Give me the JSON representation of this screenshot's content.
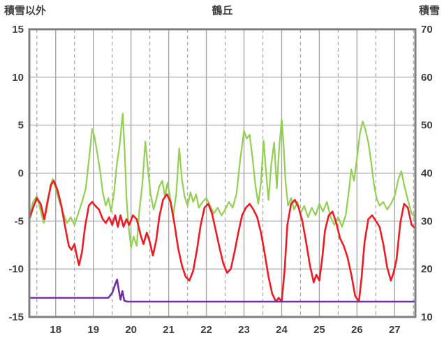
{
  "chart_data": {
    "type": "line",
    "title": "鶴丘",
    "grid": {
      "h_color": "#a6a6a6",
      "v_color": "#a6a6a6",
      "border_color": "#7f7f7f",
      "border_width": 3
    },
    "left_axis": {
      "label": "積雪以外",
      "min": -15,
      "max": 15,
      "ticks": [
        15,
        10,
        5,
        0,
        -5,
        -10,
        -15
      ]
    },
    "right_axis": {
      "label": "積雪",
      "min": 10,
      "max": 70,
      "ticks": [
        70,
        60,
        50,
        40,
        30,
        20,
        10
      ]
    },
    "x_axis": {
      "min": 17.3,
      "max": 27.55,
      "ticks": [
        18,
        19,
        20,
        21,
        22,
        23,
        24,
        25,
        26,
        27
      ],
      "half_ticks": [
        17.5,
        18.5,
        19.5,
        20.5,
        21.5,
        22.5,
        23.5,
        24.5,
        25.5,
        26.5,
        27.5
      ]
    },
    "series": [
      {
        "id": "green-line",
        "color": "#92d050",
        "width": 2.2,
        "points": [
          [
            17.3,
            -4.6
          ],
          [
            17.4,
            -3.0
          ],
          [
            17.5,
            -2.4
          ],
          [
            17.58,
            -3.6
          ],
          [
            17.68,
            -5.2
          ],
          [
            17.78,
            -3.4
          ],
          [
            17.85,
            -1.4
          ],
          [
            17.92,
            -0.6
          ],
          [
            18.0,
            -1.6
          ],
          [
            18.1,
            -3.0
          ],
          [
            18.2,
            -4.2
          ],
          [
            18.3,
            -5.2
          ],
          [
            18.4,
            -4.6
          ],
          [
            18.5,
            -5.4
          ],
          [
            18.6,
            -4.2
          ],
          [
            18.7,
            -3.0
          ],
          [
            18.8,
            -1.6
          ],
          [
            18.9,
            2.0
          ],
          [
            18.97,
            4.6
          ],
          [
            19.03,
            3.8
          ],
          [
            19.1,
            2.2
          ],
          [
            19.18,
            0.2
          ],
          [
            19.25,
            -2.0
          ],
          [
            19.33,
            -3.4
          ],
          [
            19.4,
            -2.6
          ],
          [
            19.47,
            -4.0
          ],
          [
            19.55,
            -2.0
          ],
          [
            19.62,
            0.8
          ],
          [
            19.7,
            3.0
          ],
          [
            19.78,
            6.2
          ],
          [
            19.83,
            2.4
          ],
          [
            19.88,
            -2.6
          ],
          [
            19.93,
            -5.4
          ],
          [
            20.0,
            -7.8
          ],
          [
            20.07,
            -6.6
          ],
          [
            20.15,
            -7.6
          ],
          [
            20.22,
            -4.0
          ],
          [
            20.3,
            -1.2
          ],
          [
            20.38,
            3.3
          ],
          [
            20.45,
            0.4
          ],
          [
            20.52,
            -2.2
          ],
          [
            20.6,
            -3.8
          ],
          [
            20.68,
            -2.6
          ],
          [
            20.75,
            -1.4
          ],
          [
            20.83,
            -0.8
          ],
          [
            20.9,
            -2.4
          ],
          [
            20.97,
            -1.0
          ],
          [
            21.05,
            -2.8
          ],
          [
            21.12,
            -4.4
          ],
          [
            21.2,
            -2.2
          ],
          [
            21.28,
            2.6
          ],
          [
            21.35,
            -0.6
          ],
          [
            21.42,
            -2.4
          ],
          [
            21.5,
            -3.4
          ],
          [
            21.58,
            -2.0
          ],
          [
            21.65,
            -3.0
          ],
          [
            21.73,
            -2.2
          ],
          [
            21.8,
            -3.6
          ],
          [
            21.9,
            -3.0
          ],
          [
            22.0,
            -2.6
          ],
          [
            22.1,
            -3.4
          ],
          [
            22.2,
            -4.2
          ],
          [
            22.3,
            -3.6
          ],
          [
            22.4,
            -4.4
          ],
          [
            22.5,
            -3.8
          ],
          [
            22.6,
            -3.0
          ],
          [
            22.7,
            -3.6
          ],
          [
            22.8,
            -2.2
          ],
          [
            22.9,
            1.4
          ],
          [
            23.0,
            4.4
          ],
          [
            23.07,
            3.6
          ],
          [
            23.15,
            4.0
          ],
          [
            23.22,
            1.8
          ],
          [
            23.3,
            -1.2
          ],
          [
            23.38,
            -3.2
          ],
          [
            23.45,
            -1.0
          ],
          [
            23.52,
            3.4
          ],
          [
            23.58,
            0.4
          ],
          [
            23.65,
            -2.8
          ],
          [
            23.72,
            0.8
          ],
          [
            23.8,
            3.2
          ],
          [
            23.87,
            -1.6
          ],
          [
            23.93,
            2.4
          ],
          [
            24.0,
            5.6
          ],
          [
            24.05,
            3.0
          ],
          [
            24.1,
            -0.8
          ],
          [
            24.17,
            -3.4
          ],
          [
            24.25,
            -2.6
          ],
          [
            24.33,
            -3.8
          ],
          [
            24.42,
            -3.0
          ],
          [
            24.5,
            -4.2
          ],
          [
            24.6,
            -3.4
          ],
          [
            24.7,
            -4.6
          ],
          [
            24.8,
            -3.6
          ],
          [
            24.9,
            -4.4
          ],
          [
            25.0,
            -3.2
          ],
          [
            25.1,
            -4.0
          ],
          [
            25.2,
            -3.0
          ],
          [
            25.3,
            -4.6
          ],
          [
            25.4,
            -5.4
          ],
          [
            25.5,
            -4.6
          ],
          [
            25.6,
            -5.6
          ],
          [
            25.7,
            -4.4
          ],
          [
            25.78,
            -2.0
          ],
          [
            25.85,
            0.4
          ],
          [
            25.92,
            -0.8
          ],
          [
            26.0,
            1.6
          ],
          [
            26.08,
            4.2
          ],
          [
            26.15,
            5.4
          ],
          [
            26.22,
            4.6
          ],
          [
            26.3,
            3.2
          ],
          [
            26.38,
            1.0
          ],
          [
            26.45,
            -1.2
          ],
          [
            26.52,
            -2.6
          ],
          [
            26.6,
            -3.4
          ],
          [
            26.7,
            -3.0
          ],
          [
            26.8,
            -3.8
          ],
          [
            26.9,
            -3.2
          ],
          [
            27.0,
            -2.4
          ],
          [
            27.1,
            -0.6
          ],
          [
            27.18,
            0.2
          ],
          [
            27.25,
            -1.2
          ],
          [
            27.35,
            -2.8
          ],
          [
            27.45,
            -4.2
          ],
          [
            27.55,
            -4.6
          ]
        ]
      },
      {
        "id": "red-line",
        "color": "#ed1c24",
        "width": 2.6,
        "points": [
          [
            17.3,
            -4.8
          ],
          [
            17.4,
            -3.6
          ],
          [
            17.5,
            -2.6
          ],
          [
            17.6,
            -3.2
          ],
          [
            17.7,
            -4.8
          ],
          [
            17.78,
            -3.0
          ],
          [
            17.88,
            -1.2
          ],
          [
            17.95,
            -0.8
          ],
          [
            18.05,
            -1.8
          ],
          [
            18.15,
            -3.4
          ],
          [
            18.25,
            -5.6
          ],
          [
            18.35,
            -7.6
          ],
          [
            18.42,
            -8.0
          ],
          [
            18.5,
            -7.4
          ],
          [
            18.56,
            -8.6
          ],
          [
            18.62,
            -9.6
          ],
          [
            18.7,
            -8.2
          ],
          [
            18.78,
            -5.6
          ],
          [
            18.88,
            -3.4
          ],
          [
            18.97,
            -3.0
          ],
          [
            19.05,
            -3.4
          ],
          [
            19.15,
            -3.8
          ],
          [
            19.25,
            -4.8
          ],
          [
            19.33,
            -5.2
          ],
          [
            19.42,
            -4.6
          ],
          [
            19.5,
            -5.4
          ],
          [
            19.58,
            -4.4
          ],
          [
            19.65,
            -5.6
          ],
          [
            19.72,
            -4.4
          ],
          [
            19.8,
            -5.6
          ],
          [
            19.88,
            -4.8
          ],
          [
            19.95,
            -5.4
          ],
          [
            20.05,
            -4.4
          ],
          [
            20.15,
            -4.8
          ],
          [
            20.25,
            -6.4
          ],
          [
            20.33,
            -7.4
          ],
          [
            20.42,
            -6.2
          ],
          [
            20.5,
            -7.2
          ],
          [
            20.58,
            -8.6
          ],
          [
            20.67,
            -7.0
          ],
          [
            20.75,
            -4.6
          ],
          [
            20.85,
            -2.8
          ],
          [
            20.95,
            -2.2
          ],
          [
            21.05,
            -3.0
          ],
          [
            21.15,
            -5.2
          ],
          [
            21.25,
            -7.8
          ],
          [
            21.35,
            -9.6
          ],
          [
            21.45,
            -10.8
          ],
          [
            21.55,
            -11.2
          ],
          [
            21.65,
            -10.2
          ],
          [
            21.75,
            -8.0
          ],
          [
            21.85,
            -5.4
          ],
          [
            21.95,
            -3.6
          ],
          [
            22.05,
            -3.2
          ],
          [
            22.15,
            -4.2
          ],
          [
            22.25,
            -6.0
          ],
          [
            22.35,
            -7.8
          ],
          [
            22.45,
            -9.4
          ],
          [
            22.55,
            -10.4
          ],
          [
            22.65,
            -10.0
          ],
          [
            22.75,
            -8.2
          ],
          [
            22.85,
            -6.2
          ],
          [
            22.95,
            -4.4
          ],
          [
            23.05,
            -3.6
          ],
          [
            23.15,
            -3.2
          ],
          [
            23.25,
            -3.8
          ],
          [
            23.35,
            -4.6
          ],
          [
            23.45,
            -6.2
          ],
          [
            23.55,
            -8.4
          ],
          [
            23.65,
            -10.8
          ],
          [
            23.75,
            -12.6
          ],
          [
            23.85,
            -13.4
          ],
          [
            23.92,
            -13.0
          ],
          [
            24.0,
            -13.4
          ],
          [
            24.08,
            -10.0
          ],
          [
            24.15,
            -5.4
          ],
          [
            24.25,
            -3.2
          ],
          [
            24.35,
            -2.8
          ],
          [
            24.45,
            -3.6
          ],
          [
            24.55,
            -5.0
          ],
          [
            24.65,
            -7.2
          ],
          [
            24.75,
            -9.6
          ],
          [
            24.85,
            -11.4
          ],
          [
            24.92,
            -10.6
          ],
          [
            25.0,
            -11.2
          ],
          [
            25.08,
            -8.8
          ],
          [
            25.15,
            -6.0
          ],
          [
            25.25,
            -4.4
          ],
          [
            25.35,
            -4.0
          ],
          [
            25.45,
            -5.2
          ],
          [
            25.55,
            -6.8
          ],
          [
            25.65,
            -7.6
          ],
          [
            25.75,
            -8.8
          ],
          [
            25.85,
            -10.6
          ],
          [
            25.95,
            -12.8
          ],
          [
            26.05,
            -13.4
          ],
          [
            26.12,
            -11.0
          ],
          [
            26.2,
            -7.2
          ],
          [
            26.3,
            -4.8
          ],
          [
            26.4,
            -4.4
          ],
          [
            26.5,
            -5.0
          ],
          [
            26.6,
            -5.6
          ],
          [
            26.7,
            -7.4
          ],
          [
            26.8,
            -9.8
          ],
          [
            26.9,
            -11.2
          ],
          [
            26.97,
            -10.4
          ],
          [
            27.05,
            -9.0
          ],
          [
            27.15,
            -5.2
          ],
          [
            27.25,
            -3.2
          ],
          [
            27.35,
            -3.6
          ],
          [
            27.45,
            -5.4
          ],
          [
            27.55,
            -5.8
          ]
        ]
      },
      {
        "id": "purple-line",
        "color": "#7030a0",
        "width": 2.6,
        "points": [
          [
            17.3,
            -13.0
          ],
          [
            18.0,
            -13.0
          ],
          [
            19.0,
            -13.0
          ],
          [
            19.4,
            -13.0
          ],
          [
            19.5,
            -12.5
          ],
          [
            19.58,
            -11.6
          ],
          [
            19.63,
            -11.1
          ],
          [
            19.68,
            -12.3
          ],
          [
            19.72,
            -13.2
          ],
          [
            19.77,
            -12.3
          ],
          [
            19.82,
            -13.3
          ],
          [
            19.9,
            -13.4
          ],
          [
            21.0,
            -13.4
          ],
          [
            23.0,
            -13.4
          ],
          [
            25.0,
            -13.4
          ],
          [
            27.55,
            -13.4
          ]
        ]
      }
    ]
  }
}
